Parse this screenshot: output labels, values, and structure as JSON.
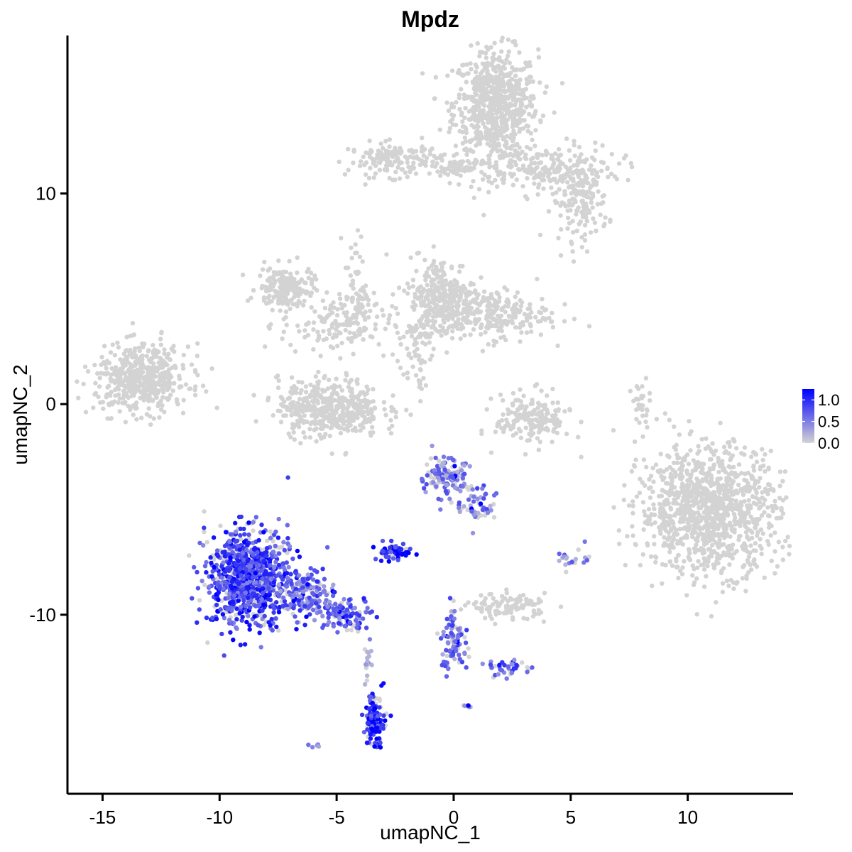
{
  "chart_data": {
    "type": "scatter",
    "title": "Mpdz",
    "xlabel": "umapNC_1",
    "ylabel": "umapNC_2",
    "xlim": [
      -16.5,
      14.5
    ],
    "ylim": [
      -18.5,
      17.5
    ],
    "x_ticks": [
      -15,
      -10,
      -5,
      0,
      5,
      10
    ],
    "y_ticks": [
      -10,
      0,
      10
    ],
    "x_tick_labels": [
      "-15",
      "-10",
      "-5",
      "0",
      "5",
      "10"
    ],
    "y_tick_labels": [
      "-10",
      "0",
      "10"
    ],
    "grid": false,
    "legend": {
      "placement": "right",
      "type": "colorbar",
      "labels": [
        "1.0",
        "0.5",
        "0.0"
      ],
      "values": [
        1.0,
        0.5,
        0.0
      ],
      "range": [
        0.0,
        1.25
      ]
    },
    "color_low": "#d3d3d3",
    "color_high": "#0000ff",
    "clusters": [
      {
        "cx": 1.8,
        "cy": 14.2,
        "sx": 0.9,
        "sy": 1.3,
        "n": 700,
        "expr": 0
      },
      {
        "cx": 3.8,
        "cy": 11.2,
        "sx": 1.6,
        "sy": 0.6,
        "n": 220,
        "expr": 0
      },
      {
        "cx": 5.4,
        "cy": 9.6,
        "sx": 0.6,
        "sy": 0.9,
        "n": 160,
        "expr": 0
      },
      {
        "cx": -2.5,
        "cy": 11.6,
        "sx": 1.0,
        "sy": 0.4,
        "n": 150,
        "expr": 0
      },
      {
        "cx": 0.5,
        "cy": 11.2,
        "sx": 0.9,
        "sy": 0.25,
        "n": 60,
        "expr": 0
      },
      {
        "cx": -7.2,
        "cy": 5.5,
        "sx": 0.6,
        "sy": 0.5,
        "n": 180,
        "expr": 0
      },
      {
        "cx": -5.0,
        "cy": 3.8,
        "sx": 1.2,
        "sy": 0.7,
        "n": 150,
        "expr": 0
      },
      {
        "cx": -4.2,
        "cy": 5.5,
        "sx": 0.25,
        "sy": 1.3,
        "n": 60,
        "expr": 0
      },
      {
        "cx": -0.5,
        "cy": 5.0,
        "sx": 0.7,
        "sy": 1.0,
        "n": 300,
        "expr": 0
      },
      {
        "cx": 1.5,
        "cy": 4.3,
        "sx": 1.3,
        "sy": 0.6,
        "n": 250,
        "expr": 0
      },
      {
        "cx": -1.7,
        "cy": 2.5,
        "sx": 0.4,
        "sy": 1.3,
        "n": 60,
        "expr": 0
      },
      {
        "cx": -5.3,
        "cy": -0.2,
        "sx": 1.1,
        "sy": 0.7,
        "n": 450,
        "expr": 0
      },
      {
        "cx": -13.3,
        "cy": 1.2,
        "sx": 1.0,
        "sy": 0.8,
        "n": 500,
        "expr": 0
      },
      {
        "cx": 3.4,
        "cy": -0.7,
        "sx": 0.8,
        "sy": 0.6,
        "n": 180,
        "expr": 0
      },
      {
        "cx": 8.0,
        "cy": -0.1,
        "sx": 0.2,
        "sy": 0.6,
        "n": 30,
        "expr": 0
      },
      {
        "cx": 10.9,
        "cy": -5.0,
        "sx": 1.5,
        "sy": 1.5,
        "n": 1100,
        "expr": 0
      },
      {
        "cx": 2.4,
        "cy": -9.6,
        "sx": 0.8,
        "sy": 0.3,
        "n": 110,
        "expr": 0
      },
      {
        "cx": 5.0,
        "cy": -7.4,
        "sx": 0.3,
        "sy": 0.3,
        "n": 20,
        "expr": 0.3
      },
      {
        "cx": -8.8,
        "cy": -8.2,
        "sx": 0.9,
        "sy": 1.1,
        "n": 900,
        "expr": 0.65
      },
      {
        "cx": -6.3,
        "cy": -9.0,
        "sx": 0.5,
        "sy": 0.5,
        "n": 150,
        "expr": 0.5
      },
      {
        "cx": -4.7,
        "cy": -10.0,
        "sx": 0.6,
        "sy": 0.4,
        "n": 120,
        "expr": 0.55
      },
      {
        "cx": -0.3,
        "cy": -3.5,
        "sx": 0.5,
        "sy": 0.5,
        "n": 130,
        "expr": 0.35
      },
      {
        "cx": 1.0,
        "cy": -4.8,
        "sx": 0.4,
        "sy": 0.5,
        "n": 50,
        "expr": 0.4
      },
      {
        "cx": -2.5,
        "cy": -7.0,
        "sx": 0.35,
        "sy": 0.2,
        "n": 60,
        "expr": 0.8
      },
      {
        "cx": 0.0,
        "cy": -11.2,
        "sx": 0.3,
        "sy": 0.8,
        "n": 90,
        "expr": 0.45
      },
      {
        "cx": 2.3,
        "cy": -12.5,
        "sx": 0.4,
        "sy": 0.2,
        "n": 40,
        "expr": 0.6
      },
      {
        "cx": -3.4,
        "cy": -15.0,
        "sx": 0.2,
        "sy": 0.6,
        "n": 120,
        "expr": 0.8
      },
      {
        "cx": -3.7,
        "cy": -12.3,
        "sx": 0.1,
        "sy": 0.5,
        "n": 15,
        "expr": 0.1
      },
      {
        "cx": 0.6,
        "cy": -14.3,
        "sx": 0.15,
        "sy": 0.1,
        "n": 6,
        "expr": 0.5
      },
      {
        "cx": -6.0,
        "cy": -16.2,
        "sx": 0.15,
        "sy": 0.1,
        "n": 5,
        "expr": 0.2
      }
    ]
  }
}
